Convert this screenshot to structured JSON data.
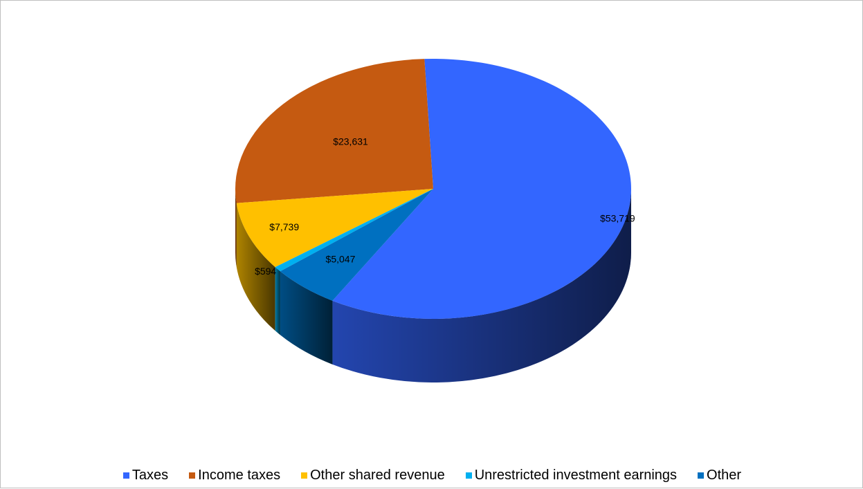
{
  "chart_data": {
    "type": "pie",
    "title": "",
    "style": "3d",
    "series": [
      {
        "name": "Taxes",
        "value": 53719,
        "label": "$53,719",
        "color": "#3366ff"
      },
      {
        "name": "Income taxes",
        "value": 23631,
        "label": "$23,631",
        "color": "#c55a11"
      },
      {
        "name": "Other shared revenue",
        "value": 7739,
        "label": "$7,739",
        "color": "#ffc000"
      },
      {
        "name": "Unrestricted investment earnings",
        "value": 594,
        "label": "$594",
        "color": "#00b0f0"
      },
      {
        "name": "Other",
        "value": 5047,
        "label": "$5,047",
        "color": "#0070c0"
      }
    ],
    "legend_position": "bottom"
  }
}
